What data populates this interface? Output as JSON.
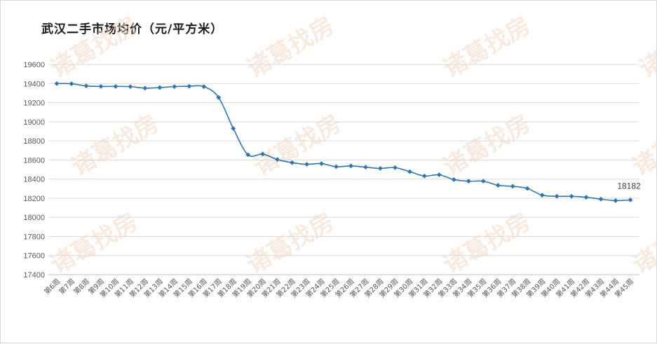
{
  "chart_data": {
    "type": "line",
    "title": "武汉二手市场均价（元/平方米）",
    "watermark": "诸葛找房",
    "xlabel": "",
    "ylabel": "",
    "ylim": [
      17400,
      19600
    ],
    "yticks": [
      17400,
      17600,
      17800,
      18000,
      18200,
      18400,
      18600,
      18800,
      19000,
      19200,
      19400,
      19600
    ],
    "grid": true,
    "legend": "none",
    "color": "#2e75b6",
    "categories": [
      "第6周",
      "第7周",
      "第8周",
      "第9周",
      "第10周",
      "第11周",
      "第12周",
      "第13周",
      "第14周",
      "第15周",
      "第16周",
      "第17周",
      "第18周",
      "第19周",
      "第20周",
      "第21周",
      "第22周",
      "第23周",
      "第24周",
      "第25周",
      "第26周",
      "第27周",
      "第28周",
      "第29周",
      "第30周",
      "第31周",
      "第32周",
      "第33周",
      "第34周",
      "第35周",
      "第36周",
      "第37周",
      "第38周",
      "第39周",
      "第40周",
      "第41周",
      "第42周",
      "第43周",
      "第44周",
      "第45周"
    ],
    "series": [
      {
        "values": [
          19400,
          19398,
          19375,
          19370,
          19370,
          19368,
          19352,
          19358,
          19368,
          19372,
          19368,
          19255,
          18930,
          18655,
          18662,
          18605,
          18572,
          18555,
          18562,
          18530,
          18538,
          18525,
          18512,
          18520,
          18478,
          18432,
          18445,
          18395,
          18378,
          18378,
          18335,
          18325,
          18302,
          18232,
          18220,
          18220,
          18210,
          18190,
          18175,
          18182
        ]
      }
    ],
    "data_labels": [
      {
        "index": 39,
        "text": "18182"
      }
    ]
  }
}
